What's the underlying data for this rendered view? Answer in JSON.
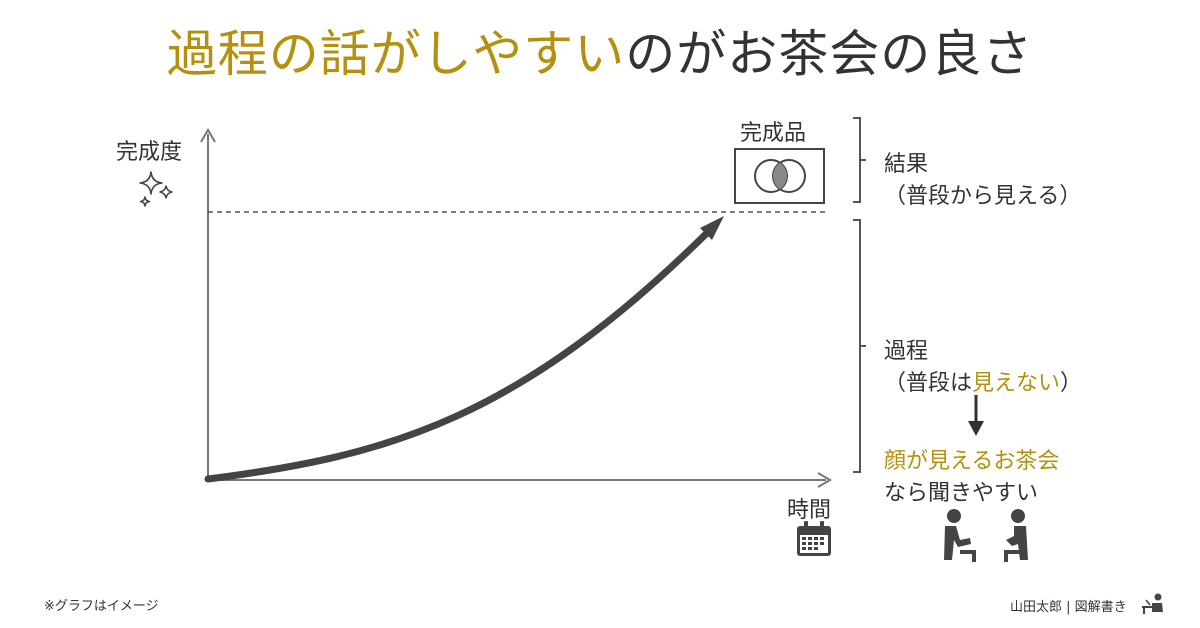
{
  "title": {
    "highlight": "過程の話がしやすい",
    "rest": "のがお茶会の良さ"
  },
  "y_axis_label": "完成度",
  "x_axis_label": "時間",
  "product_label": "完成品",
  "result": {
    "line1": "結果",
    "line2": "（普段から見える）"
  },
  "process": {
    "line1": "過程",
    "line2_prefix": "（普段は",
    "line2_highlight": "見えない",
    "line2_suffix": "）"
  },
  "conclusion": {
    "line1": "顔が見えるお茶会",
    "line2": "なら聞きやすい"
  },
  "footnote": "※グラフはイメージ",
  "credit": "山田太郎 | 図解書き",
  "colors": {
    "accent": "#b5900f",
    "text": "#333333",
    "line": "#444444",
    "axis": "#777777"
  }
}
